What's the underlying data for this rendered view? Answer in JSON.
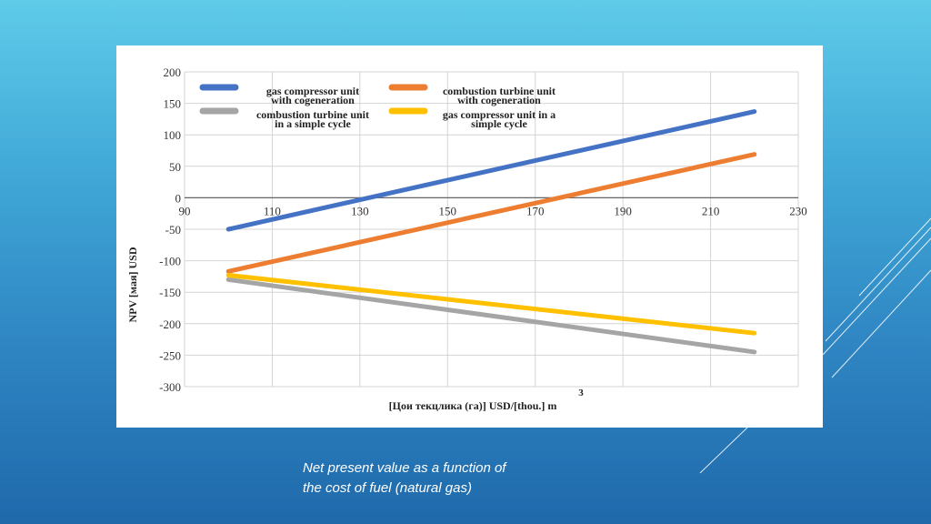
{
  "caption": {
    "line1": "Net present value as a function of",
    "line2": "the cost of fuel (natural gas)"
  },
  "colors": {
    "background_top": "#5fcbe9",
    "background_bottom": "#1f69ab",
    "series_blue": "#4472c4",
    "series_orange": "#ed7d31",
    "series_gray": "#a5a5a5",
    "series_yellow": "#ffc000"
  },
  "chart_data": {
    "type": "line",
    "title": "",
    "xlabel": "[Цои текцлика (га)] USD/[thou.] m",
    "xlabel_superscript": "3",
    "ylabel": "NPV [мая] USD",
    "xlim": [
      90,
      230
    ],
    "ylim": [
      -300,
      200
    ],
    "x_ticks": [
      "90",
      "110",
      "130",
      "150",
      "170",
      "190",
      "210",
      "230"
    ],
    "y_ticks": [
      "200",
      "150",
      "100",
      "50",
      "0",
      "-50",
      "-100",
      "-150",
      "-200",
      "-250",
      "-300"
    ],
    "grid": true,
    "legend_position": "top-left",
    "series": [
      {
        "name_line1": "gas compressor unit",
        "name_line2": "with cogeneration",
        "color": "#4472c4",
        "x": [
          100,
          220
        ],
        "y": [
          -50,
          137
        ]
      },
      {
        "name_line1": "combustion turbine unit",
        "name_line2": "with cogeneration",
        "color": "#ed7d31",
        "x": [
          100,
          220
        ],
        "y": [
          -117,
          69
        ]
      },
      {
        "name_line1": "combustion turbine unit",
        "name_line2": "in a simple cycle",
        "color": "#a5a5a5",
        "x": [
          100,
          220
        ],
        "y": [
          -130,
          -245
        ]
      },
      {
        "name_line1": "gas compressor unit in a",
        "name_line2": "simple cycle",
        "color": "#ffc000",
        "x": [
          100,
          220
        ],
        "y": [
          -123,
          -215
        ]
      }
    ]
  }
}
